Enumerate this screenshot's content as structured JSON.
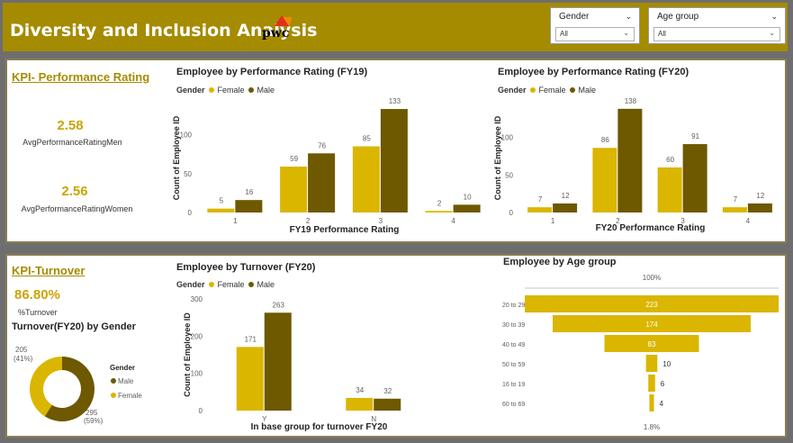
{
  "header": {
    "title": "Diversity and Inclusion Analysis",
    "logo_text": "pwc",
    "background_color": "#a58b00"
  },
  "slicers": [
    {
      "title": "Gender",
      "value": "All"
    },
    {
      "title": "Age group",
      "value": "All"
    }
  ],
  "colors": {
    "female": "#dab600",
    "male": "#6e5800",
    "accent_text": "#c9a500"
  },
  "kpi_performance": {
    "heading": "KPI- Performance Rating",
    "men_value": "2.58",
    "men_label": "AvgPerformanceRatingMen",
    "women_value": "2.56",
    "women_label": "AvgPerformanceRatingWomen"
  },
  "kpi_turnover": {
    "heading": "KPI-Turnover",
    "value": "86.80%",
    "label": "%Turnover",
    "donut_title": "Turnover(FY20) by Gender"
  },
  "legend": {
    "title": "Gender",
    "female": "Female",
    "male": "Male"
  },
  "chart_data": [
    {
      "id": "fy19",
      "type": "bar",
      "title": "Employee by Performance Rating (FY19)",
      "xlabel": "FY19 Performance Rating",
      "ylabel": "Count of Employee ID",
      "categories": [
        "1",
        "2",
        "3",
        "4"
      ],
      "yticks": [
        0,
        50,
        100
      ],
      "ylim": [
        0,
        140
      ],
      "series": [
        {
          "name": "Female",
          "values": [
            5,
            59,
            85,
            2
          ]
        },
        {
          "name": "Male",
          "values": [
            16,
            76,
            133,
            10
          ]
        }
      ]
    },
    {
      "id": "fy20",
      "type": "bar",
      "title": "Employee by Performance Rating (FY20)",
      "xlabel": "FY20 Performance Rating",
      "ylabel": "Count of Employee ID",
      "categories": [
        "1",
        "2",
        "3",
        "4"
      ],
      "yticks": [
        0,
        50,
        100
      ],
      "ylim": [
        0,
        145
      ],
      "series": [
        {
          "name": "Female",
          "values": [
            7,
            86,
            60,
            7
          ]
        },
        {
          "name": "Male",
          "values": [
            12,
            138,
            91,
            12
          ]
        }
      ]
    },
    {
      "id": "turnover",
      "type": "bar",
      "title": "Employee by Turnover (FY20)",
      "xlabel": "In base group for turnover FY20",
      "ylabel": "Count of Employee ID",
      "categories": [
        "Y",
        "N"
      ],
      "yticks": [
        0,
        100,
        200,
        300
      ],
      "ylim": [
        0,
        300
      ],
      "series": [
        {
          "name": "Female",
          "values": [
            171,
            34
          ]
        },
        {
          "name": "Male",
          "values": [
            263,
            32
          ]
        }
      ]
    },
    {
      "id": "donut",
      "type": "pie",
      "legend_title": "Gender",
      "slices": [
        {
          "name": "Male",
          "value": 295,
          "label": "295",
          "pct_label": "(59%)"
        },
        {
          "name": "Female",
          "value": 205,
          "label": "205",
          "pct_label": "(41%)"
        }
      ]
    },
    {
      "id": "age_funnel",
      "type": "bar",
      "title": "Employee by Age group",
      "top_label": "100%",
      "bottom_label": "1.8%",
      "categories": [
        "20 to 29",
        "30 to 39",
        "40 to 49",
        "50 to 59",
        "16 to 19",
        "60 to 69"
      ],
      "values": [
        223,
        174,
        83,
        10,
        6,
        4
      ]
    }
  ]
}
